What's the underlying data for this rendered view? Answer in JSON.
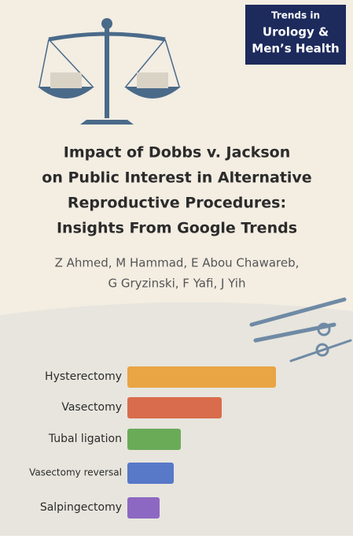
{
  "journal": {
    "lines": [
      "Trends in",
      "Urology &",
      "Men’s Health"
    ]
  },
  "title": {
    "lines": [
      "Impact of Dobbs v. Jackson",
      "on Public Interest in Alternative",
      "Reproductive Procedures:",
      "Insights From Google Trends"
    ]
  },
  "authors": {
    "lines": [
      "Z Ahmed, M Hammad, E Abou Chawareb,",
      "G Gryzinski, F Yafi, J Yih"
    ]
  },
  "chart_data": {
    "type": "hbar",
    "categories": [
      "Hysterectomy",
      "Vasectomy",
      "Tubal ligation",
      "Vasectomy reversal",
      "Salpingectomy"
    ],
    "values": [
      189,
      120,
      68,
      59,
      41
    ],
    "colors": [
      "#e9a444",
      "#d96c4c",
      "#6aab57",
      "#5878c8",
      "#8d68c2"
    ],
    "xlim": [
      0,
      200
    ]
  }
}
